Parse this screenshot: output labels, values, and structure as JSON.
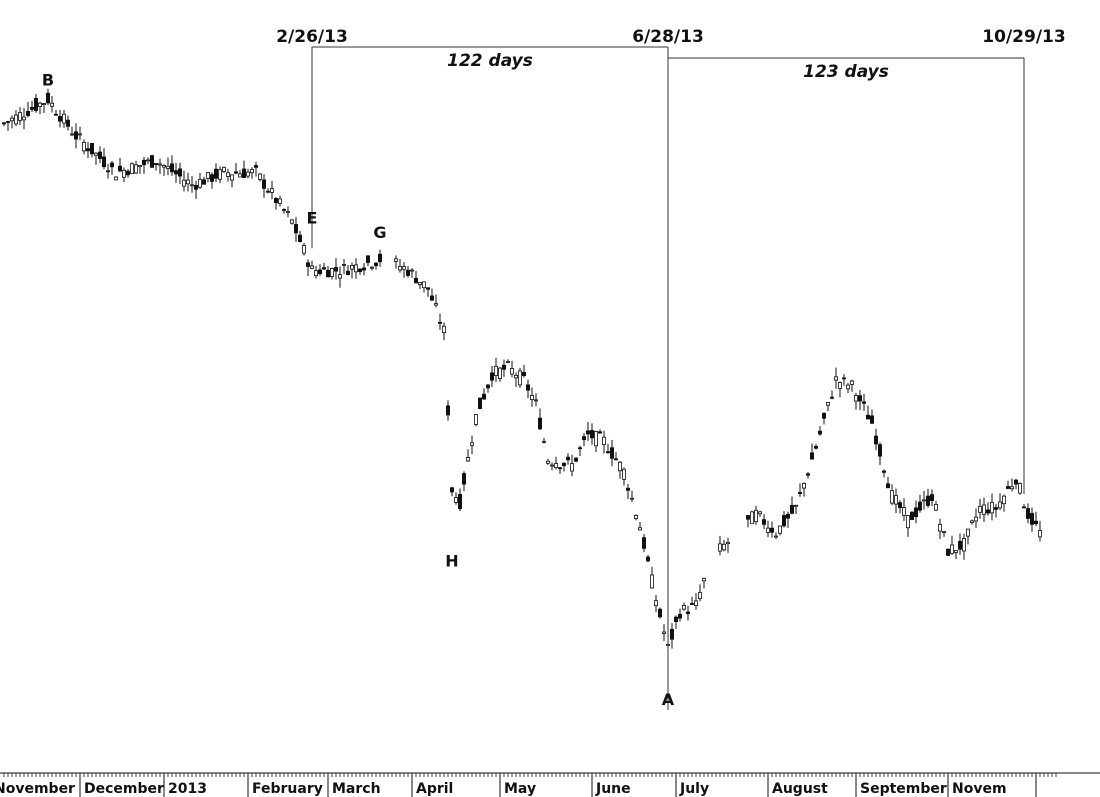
{
  "chart_data": {
    "type": "candlestick",
    "x_axis": {
      "months": [
        "November",
        "December",
        "2013",
        "February",
        "March",
        "April",
        "May",
        "June",
        "July",
        "August",
        "September",
        "Novem"
      ]
    },
    "y_axis": {
      "range": [
        0,
        100
      ],
      "grid": false
    },
    "point_labels": [
      {
        "label": "B",
        "x": 11,
        "y": 95
      },
      {
        "label": "E",
        "x": 77,
        "y": 73
      },
      {
        "label": "G",
        "x": 94,
        "y": 71
      },
      {
        "label": "H",
        "x": 112,
        "y": 23
      },
      {
        "label": "A",
        "x": 166,
        "y": 2
      }
    ],
    "date_markers": [
      {
        "label": "2/26/13",
        "x": 77
      },
      {
        "label": "6/28/13",
        "x": 166
      },
      {
        "label": "10/29/13",
        "x": 255
      }
    ],
    "spans": [
      {
        "label": "122 days",
        "from": 77,
        "to": 166
      },
      {
        "label": "123 days",
        "from": 166,
        "to": 255
      }
    ],
    "anchors": [
      [
        0,
        92
      ],
      [
        11,
        96
      ],
      [
        18,
        90
      ],
      [
        28,
        84
      ],
      [
        38,
        86
      ],
      [
        47,
        82
      ],
      [
        55,
        84
      ],
      [
        63,
        84
      ],
      [
        72,
        76
      ],
      [
        77,
        68
      ],
      [
        84,
        68
      ],
      [
        90,
        69
      ],
      [
        95,
        70
      ],
      [
        101,
        68
      ],
      [
        106,
        65
      ],
      [
        110,
        58
      ],
      [
        112,
        32
      ],
      [
        114,
        30
      ],
      [
        118,
        44
      ],
      [
        122,
        51
      ],
      [
        126,
        52
      ],
      [
        130,
        50
      ],
      [
        133,
        46
      ],
      [
        136,
        37
      ],
      [
        142,
        36
      ],
      [
        146,
        41
      ],
      [
        150,
        40
      ],
      [
        155,
        35
      ],
      [
        159,
        26
      ],
      [
        163,
        14
      ],
      [
        166,
        6
      ],
      [
        169,
        12
      ],
      [
        173,
        13
      ],
      [
        177,
        21
      ],
      [
        182,
        24
      ],
      [
        188,
        28
      ],
      [
        193,
        25
      ],
      [
        198,
        29
      ],
      [
        203,
        39
      ],
      [
        208,
        50
      ],
      [
        212,
        49
      ],
      [
        217,
        43
      ],
      [
        222,
        31
      ],
      [
        226,
        27
      ],
      [
        232,
        31
      ],
      [
        236,
        22
      ],
      [
        240,
        23
      ],
      [
        244,
        29
      ],
      [
        248,
        29
      ],
      [
        251,
        32
      ],
      [
        253,
        34
      ],
      [
        256,
        28
      ],
      [
        259,
        25
      ]
    ]
  }
}
